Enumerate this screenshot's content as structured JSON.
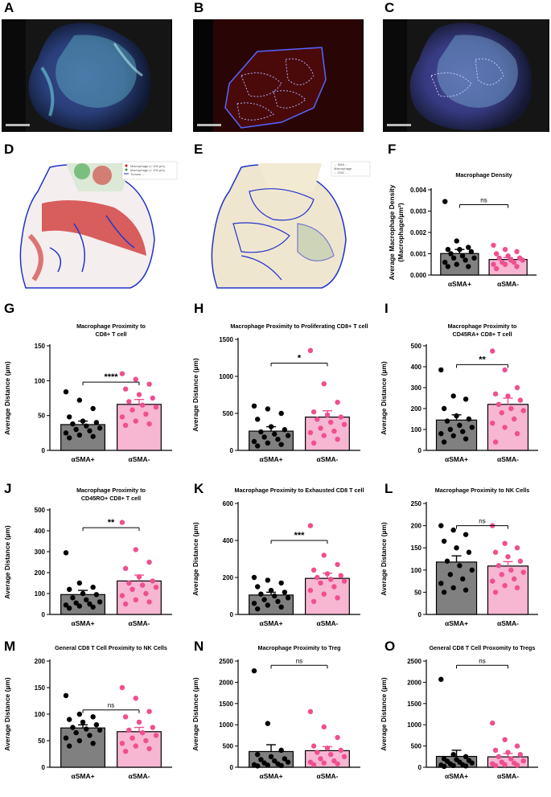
{
  "panel_letters": [
    "A",
    "B",
    "C",
    "D",
    "E",
    "F",
    "G",
    "H",
    "I",
    "J",
    "K",
    "L",
    "M",
    "N",
    "O"
  ],
  "images": {
    "A": {
      "description_icon": "multiplex-tissue-image"
    },
    "B": {
      "description_icon": "region-annotation-image"
    },
    "C": {
      "description_icon": "merged-tissue-image"
    },
    "D": {
      "legend": [
        "Macrophage (< 100 µm)",
        "Macrophage (> 100 µm)",
        "Tumour ...",
        "Tumour ..."
      ]
    },
    "E": {
      "legend": [
        "... SMA ...",
        "Macrophage",
        "... CD8 ..."
      ]
    }
  },
  "colors": {
    "sma_pos": "#808080",
    "sma_neg": "#f7b6d2",
    "sma_neg_dot": "#ef4f8f",
    "sma_pos_dot": "#000000"
  },
  "chart_data": [
    {
      "id": "F",
      "type": "bar",
      "title": "Macrophage Density",
      "title2": "",
      "ylabel": "Average Macrophage Density",
      "ylabel2": "(Macrophage/µm²)",
      "categories": [
        "αSMA+",
        "αSMA-"
      ],
      "values": [
        0.00101,
        0.00073
      ],
      "errors": [
        0.00019,
        9e-05
      ],
      "ylim": [
        0,
        0.004
      ],
      "yticks": [
        0,
        0.001,
        0.002,
        0.003,
        0.004
      ],
      "ytick_labels": [
        "0.000",
        "0.001",
        "0.002",
        "0.003",
        "0.004"
      ],
      "sig": "ns",
      "sig_y": 0.0033,
      "points": [
        [
          0.00345,
          0.0016,
          0.0013,
          0.0012,
          0.0012,
          0.0011,
          0.001,
          0.0009,
          0.0008,
          0.0008,
          0.0007,
          0.0006,
          0.0005,
          0.0004,
          0.0004
        ],
        [
          0.0014,
          0.0012,
          0.0011,
          0.001,
          0.0009,
          0.0008,
          0.0008,
          0.0007,
          0.0007,
          0.0006,
          0.0006,
          0.0005,
          0.0005,
          0.0004,
          0.0003
        ]
      ]
    },
    {
      "id": "G",
      "type": "bar",
      "title": "Macrophage Proximity to",
      "title2": "CD8+ T cell",
      "ylabel": "Average Distance (µm)",
      "ylabel2": "",
      "categories": [
        "αSMA+",
        "αSMA-"
      ],
      "values": [
        37,
        66
      ],
      "errors": [
        5,
        7
      ],
      "ylim": [
        0,
        150
      ],
      "yticks": [
        0,
        50,
        100,
        150
      ],
      "ytick_labels": [
        "0",
        "50",
        "100",
        "150"
      ],
      "sig": "****",
      "sig_y": 98,
      "points": [
        [
          84,
          72,
          60,
          48,
          42,
          40,
          38,
          35,
          32,
          30,
          28,
          25,
          22,
          20,
          18
        ],
        [
          110,
          102,
          95,
          88,
          80,
          75,
          70,
          65,
          62,
          58,
          52,
          48,
          42,
          38,
          36
        ]
      ]
    },
    {
      "id": "H",
      "type": "bar",
      "title": "Macrophage Proximity to Proliferating CD8+ T cell",
      "title2": "",
      "ylabel": "Average Distance (µm)",
      "ylabel2": "",
      "categories": [
        "αSMA+",
        "αSMA-"
      ],
      "values": [
        260,
        450
      ],
      "errors": [
        60,
        85
      ],
      "ylim": [
        0,
        1500
      ],
      "yticks": [
        0,
        500,
        1000,
        1500
      ],
      "ytick_labels": [
        "0",
        "500",
        "1000",
        "1500"
      ],
      "sig": "*",
      "sig_y": 1180,
      "points": [
        [
          600,
          560,
          500,
          420,
          320,
          280,
          250,
          220,
          200,
          180,
          150,
          120,
          100,
          80,
          60
        ],
        [
          1350,
          900,
          650,
          520,
          480,
          450,
          420,
          380,
          350,
          300,
          260,
          240,
          200,
          150,
          100
        ]
      ]
    },
    {
      "id": "I",
      "type": "bar",
      "title": "Macrophage Proximity to",
      "title2": "CD45RA+ CD8+ T cell",
      "ylabel": "Average Distance (µm)",
      "ylabel2": "",
      "categories": [
        "αSMA+",
        "αSMA-"
      ],
      "values": [
        145,
        220
      ],
      "errors": [
        25,
        30
      ],
      "ylim": [
        0,
        500
      ],
      "yticks": [
        0,
        100,
        200,
        300,
        400,
        500
      ],
      "ytick_labels": [
        "0",
        "100",
        "200",
        "300",
        "400",
        "500"
      ],
      "sig": "**",
      "sig_y": 410,
      "points": [
        [
          385,
          260,
          245,
          200,
          165,
          150,
          140,
          120,
          110,
          100,
          90,
          80,
          70,
          55,
          40
        ],
        [
          475,
          385,
          300,
          270,
          260,
          240,
          220,
          200,
          190,
          180,
          150,
          130,
          110,
          80,
          40
        ]
      ]
    },
    {
      "id": "J",
      "type": "bar",
      "title": "Macrophage Proximity to",
      "title2": "CD45RO+ CD8+ T cell",
      "ylabel": "Average Distance (µm)",
      "ylabel2": "",
      "categories": [
        "αSMA+",
        "αSMA-"
      ],
      "values": [
        95,
        160
      ],
      "errors": [
        20,
        28
      ],
      "ylim": [
        0,
        500
      ],
      "yticks": [
        0,
        100,
        200,
        300,
        400,
        500
      ],
      "ytick_labels": [
        "0",
        "100",
        "200",
        "300",
        "400",
        "500"
      ],
      "sig": "**",
      "sig_y": 415,
      "points": [
        [
          295,
          150,
          130,
          120,
          100,
          95,
          80,
          70,
          60,
          55,
          50,
          45,
          40,
          35,
          30
        ],
        [
          440,
          310,
          250,
          220,
          180,
          160,
          150,
          140,
          130,
          120,
          100,
          90,
          70,
          60,
          50
        ]
      ]
    },
    {
      "id": "K",
      "type": "bar",
      "title": "Macrophage Proximity to Exhausted CD8 T cell",
      "title2": "",
      "ylabel": "Average Distance (µm)",
      "ylabel2": "",
      "categories": [
        "αSMA+",
        "αSMA-"
      ],
      "values": [
        105,
        195
      ],
      "errors": [
        15,
        28
      ],
      "ylim": [
        0,
        600
      ],
      "yticks": [
        0,
        200,
        400,
        600
      ],
      "ytick_labels": [
        "0",
        "200",
        "400",
        "600"
      ],
      "sig": "***",
      "sig_y": 400,
      "points": [
        [
          200,
          185,
          170,
          150,
          130,
          120,
          110,
          100,
          90,
          80,
          70,
          60,
          50,
          40,
          30
        ],
        [
          480,
          320,
          270,
          240,
          220,
          210,
          200,
          190,
          180,
          170,
          150,
          130,
          110,
          90,
          70
        ]
      ]
    },
    {
      "id": "L",
      "type": "bar",
      "title": "Macrophage Proximity to NK Cells",
      "title2": "",
      "ylabel": "Average Distance (µm)",
      "ylabel2": "",
      "categories": [
        "αSMA+",
        "αSMA-"
      ],
      "values": [
        118,
        109
      ],
      "errors": [
        14,
        10
      ],
      "ylim": [
        0,
        250
      ],
      "yticks": [
        0,
        50,
        100,
        150,
        200,
        250
      ],
      "ytick_labels": [
        "0",
        "50",
        "100",
        "150",
        "200",
        "250"
      ],
      "sig": "ns",
      "sig_y": 200,
      "points": [
        [
          200,
          190,
          180,
          165,
          150,
          140,
          120,
          110,
          100,
          90,
          80,
          70,
          60,
          55,
          50
        ],
        [
          200,
          160,
          150,
          140,
          130,
          120,
          110,
          100,
          95,
          90,
          80,
          75,
          65,
          60,
          50
        ]
      ]
    },
    {
      "id": "M",
      "type": "bar",
      "title": "General CD8 T Cell Proximity to NK Cells",
      "title2": "",
      "ylabel": "Average Distance (µm)",
      "ylabel2": "",
      "categories": [
        "αSMA+",
        "αSMA-"
      ],
      "values": [
        74,
        67
      ],
      "errors": [
        6,
        8
      ],
      "ylim": [
        0,
        200
      ],
      "yticks": [
        0,
        50,
        100,
        150,
        200
      ],
      "ytick_labels": [
        "0",
        "50",
        "100",
        "150",
        "200"
      ],
      "sig": "ns",
      "sig_y": 108,
      "points": [
        [
          135,
          100,
          95,
          90,
          85,
          80,
          75,
          72,
          70,
          65,
          60,
          55,
          50,
          45,
          40
        ],
        [
          150,
          130,
          105,
          95,
          85,
          75,
          70,
          65,
          60,
          55,
          50,
          45,
          40,
          35,
          30
        ]
      ]
    },
    {
      "id": "N",
      "type": "bar",
      "title": "Macrophage Proximity to Treg",
      "title2": "",
      "ylabel": "Average Distance (µm)",
      "ylabel2": "",
      "categories": [
        "αSMA+",
        "αSMA-"
      ],
      "values": [
        370,
        390
      ],
      "errors": [
        160,
        95
      ],
      "ylim": [
        0,
        2500
      ],
      "yticks": [
        0,
        500,
        1000,
        1500,
        2000,
        2500
      ],
      "ytick_labels": [
        "0",
        "500",
        "1000",
        "1500",
        "2000",
        "2500"
      ],
      "sig": "ns",
      "sig_y": 2400,
      "points": [
        [
          2270,
          1030,
          400,
          300,
          250,
          200,
          180,
          150,
          120,
          100,
          80,
          60,
          50,
          40,
          30
        ],
        [
          1310,
          950,
          700,
          500,
          450,
          400,
          350,
          300,
          250,
          200,
          150,
          120,
          100,
          80,
          60
        ]
      ]
    },
    {
      "id": "O",
      "type": "bar",
      "title": "General CD8 T Cell Proxomity to Tregs",
      "title2": "",
      "ylabel": "Average Distance (µm)",
      "ylabel2": "",
      "categories": [
        "αSMA+",
        "αSMA-"
      ],
      "values": [
        255,
        245
      ],
      "errors": [
        145,
        80
      ],
      "ylim": [
        0,
        2500
      ],
      "yticks": [
        0,
        500,
        1000,
        1500,
        2000,
        2500
      ],
      "ytick_labels": [
        "0",
        "500",
        "1000",
        "1500",
        "2000",
        "2500"
      ],
      "sig": "ns",
      "sig_y": 2400,
      "points": [
        [
          2070,
          300,
          250,
          200,
          180,
          160,
          140,
          120,
          100,
          80,
          60,
          50,
          40,
          30,
          20
        ],
        [
          1040,
          650,
          500,
          400,
          350,
          300,
          250,
          200,
          150,
          120,
          100,
          80,
          60,
          50,
          40
        ]
      ]
    }
  ]
}
